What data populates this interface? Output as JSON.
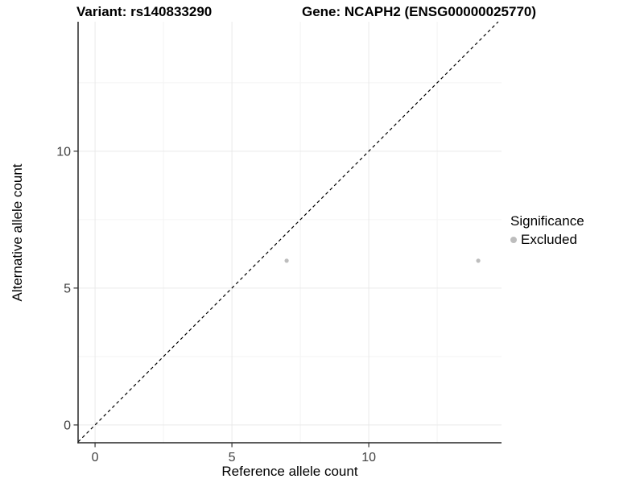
{
  "chart_data": {
    "type": "scatter",
    "titles": {
      "left": "Variant: rs140833290",
      "right": "Gene: NCAPH2 (ENSG00000025770)"
    },
    "xlabel": "Reference allele count",
    "ylabel": "Alternative allele count",
    "xlim": [
      -0.62,
      14.85
    ],
    "ylim": [
      -0.65,
      14.73
    ],
    "x_ticks": [
      0,
      5,
      10
    ],
    "y_ticks": [
      0,
      5,
      10
    ],
    "x_minor_ticks": [
      2.5,
      7.5,
      12.5
    ],
    "y_minor_ticks": [
      2.5,
      7.5,
      12.5
    ],
    "grid": true,
    "identity_line": {
      "slope": 1,
      "intercept": 0,
      "linetype": "dashed",
      "color": "#000000"
    },
    "series": [
      {
        "name": "Excluded",
        "color": "#bdbdbd",
        "points": [
          [
            7,
            6
          ],
          [
            14,
            6
          ]
        ]
      }
    ],
    "legend": {
      "title": "Significance",
      "position": "right",
      "items": [
        {
          "label": "Excluded",
          "color": "#bdbdbd",
          "marker": "circle"
        }
      ]
    }
  },
  "colors": {
    "background": "#ffffff",
    "axis_line": "#262626",
    "tick_mark": "#333333",
    "tick_label": "#404040",
    "grid_major": "#e9e9e9",
    "grid_minor": "#f4f4f4"
  }
}
